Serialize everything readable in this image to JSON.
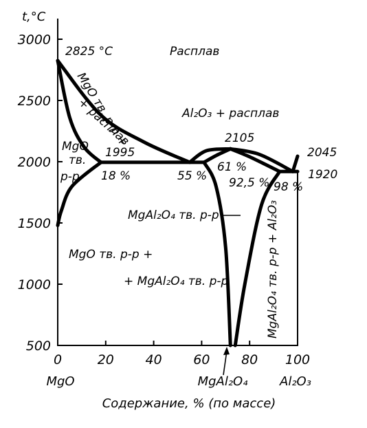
{
  "chart_data": {
    "type": "phase-diagram",
    "ylabel": "t,°C",
    "xlabel": "Содержание, % (по массе)",
    "x_ticks": [
      "0",
      "20",
      "40",
      "60",
      "80",
      "100"
    ],
    "y_ticks": [
      "500",
      "1000",
      "1500",
      "2000",
      "2500",
      "3000"
    ],
    "xlim": [
      0,
      100
    ],
    "ylim": [
      500,
      3000
    ],
    "component_labels": {
      "left": "MgO",
      "middle": "MgAl₂O₄",
      "right": "Al₂O₃"
    },
    "points": {
      "mgo_melting": {
        "label": "2825 °C",
        "x": 0,
        "t": 2825
      },
      "spinel_melting": {
        "label": "2105",
        "x": 72,
        "t": 2105
      },
      "al2o3_melting": {
        "label": "2045",
        "x": 100,
        "t": 2045
      },
      "left_eutectic": {
        "label": "1995",
        "t": 1995
      },
      "right_eutectic": {
        "label": "1920",
        "t": 1920
      },
      "comp_18": {
        "label": "18 %",
        "x": 18
      },
      "comp_55": {
        "label": "55 %",
        "x": 55
      },
      "comp_61": {
        "label": "61 %",
        "x": 61
      },
      "comp_925": {
        "label": "92,5 %",
        "x": 92.5
      },
      "comp_98": {
        "label": "98 %",
        "x": 98
      }
    },
    "phase_regions": {
      "melt": "Расплав",
      "al2o3_melt": "Al₂O₃ + расплав",
      "mgo_melt_1": "MgO тв. р-р +",
      "mgo_melt_2": "+ расплав",
      "mgo_ss_1": "MgO",
      "mgo_ss_2": "тв.",
      "mgo_ss_3": "р-р",
      "spinel_ss": "MgAl₂O₄ тв. р-р",
      "two_phase_1": "MgO тв. р-р +",
      "two_phase_2": "+ MgAl₂O₄ тв. р-р",
      "spinel_al2o3": "MgAl₂O₄ тв. р-р + Al₂O₃"
    },
    "boundaries": {
      "liquidus_mgo": [
        [
          0,
          2825
        ],
        [
          18,
          2380
        ],
        [
          36,
          2160
        ],
        [
          55,
          1995
        ]
      ],
      "solidus_mgo": [
        [
          0,
          2825
        ],
        [
          5,
          2360
        ],
        [
          11,
          2120
        ],
        [
          18,
          1995
        ]
      ],
      "liquidus_spinel_left": [
        [
          55,
          1995
        ],
        [
          62,
          2090
        ],
        [
          72,
          2105
        ]
      ],
      "liquidus_spinel_right": [
        [
          72,
          2105
        ],
        [
          84,
          2060
        ],
        [
          98,
          1920
        ]
      ],
      "solidus_spinel_left": [
        [
          61,
          1995
        ],
        [
          66,
          2050
        ],
        [
          72,
          2105
        ]
      ],
      "solidus_spinel_right": [
        [
          72,
          2105
        ],
        [
          80,
          2040
        ],
        [
          92.5,
          1920
        ]
      ],
      "liquidus_al2o3": [
        [
          98,
          1920
        ],
        [
          100,
          2045
        ]
      ],
      "left_eutectic_line": [
        [
          18,
          1995
        ],
        [
          61,
          1995
        ]
      ],
      "right_eutectic_line": [
        [
          92.5,
          1920
        ],
        [
          100,
          1920
        ]
      ],
      "solvus_mgo": [
        [
          0,
          1480
        ],
        [
          1.5,
          1600
        ],
        [
          6,
          1800
        ],
        [
          18,
          1995
        ]
      ],
      "solvus_spinel_left": [
        [
          61,
          1995
        ],
        [
          66,
          1800
        ],
        [
          70,
          1300
        ],
        [
          72,
          500
        ]
      ],
      "solvus_spinel_right": [
        [
          92.5,
          1920
        ],
        [
          85,
          1650
        ],
        [
          78,
          1000
        ],
        [
          74,
          500
        ]
      ]
    }
  }
}
